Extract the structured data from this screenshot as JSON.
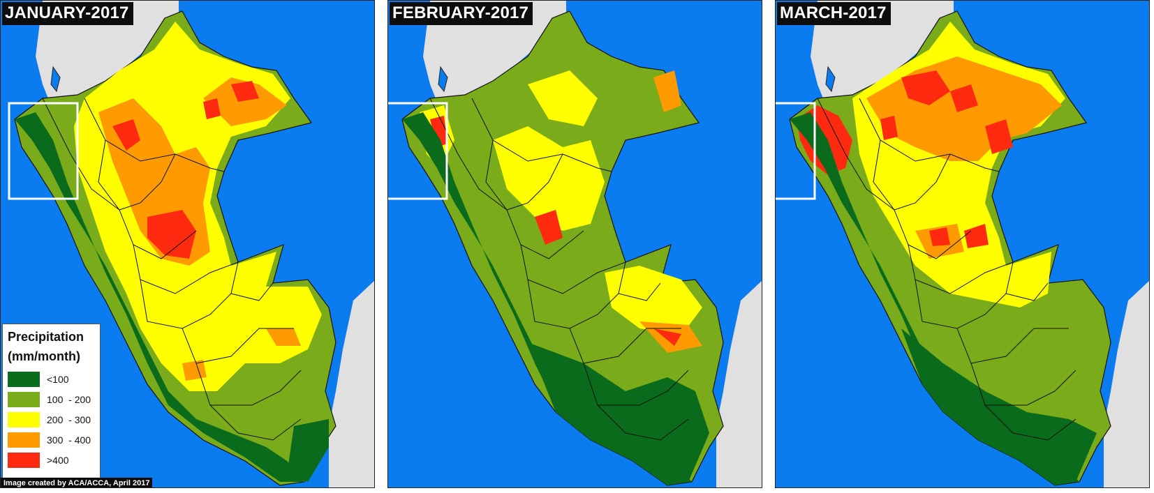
{
  "panels": [
    {
      "title": "JANUARY-2017"
    },
    {
      "title": "FEBRUARY-2017"
    },
    {
      "title": "MARCH-2017"
    }
  ],
  "legend": {
    "title_line1": "Precipitation",
    "title_line2": "(mm/month)",
    "classes": [
      {
        "label": "<100",
        "color": "#0b6b1c"
      },
      {
        "label": "100  - 200",
        "color": "#7aab1a"
      },
      {
        "label": "200  - 300",
        "color": "#ffff00"
      },
      {
        "label": "300  - 400",
        "color": "#ff9b00"
      },
      {
        "label": ">400",
        "color": "#ff2a10"
      }
    ]
  },
  "credit": "Image created by ACA/ACCA, April 2017",
  "colors": {
    "ocean": "#0a7cf0",
    "land_outside": "#e0e0e0",
    "highlight_box": "#ffffff"
  }
}
